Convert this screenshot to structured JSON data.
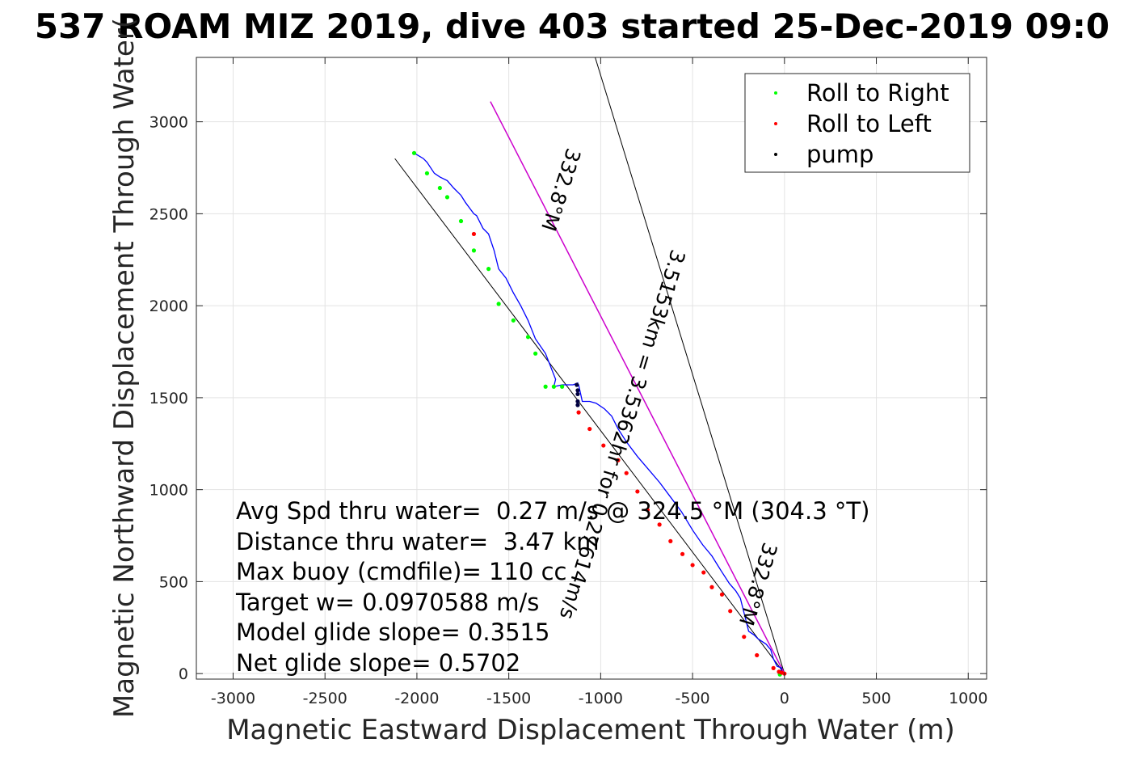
{
  "chart_data": {
    "type": "line",
    "title": "537 ROAM MIZ 2019, dive 403 started 25-Dec-2019 09:0",
    "xlabel": "Magnetic Eastward Displacement Through Water (m)",
    "ylabel": "Magnetic Northward Displacement Through Water(",
    "xlim": [
      -3200,
      1100
    ],
    "ylim": [
      -30,
      3350
    ],
    "xticks": [
      -3000,
      -2500,
      -2000,
      -1500,
      -1000,
      -500,
      0,
      500,
      1000
    ],
    "yticks": [
      0,
      500,
      1000,
      1500,
      2000,
      2500,
      3000
    ],
    "grid": true,
    "legend": {
      "placement": "top-right",
      "entries": [
        {
          "label": "Roll to Right",
          "color": "#00ff00"
        },
        {
          "label": "Roll to Left",
          "color": "#ff0000"
        },
        {
          "label": "pump",
          "color": "#000000"
        }
      ]
    },
    "track": {
      "color": "#0000ff",
      "x": [
        -25,
        -15,
        -40,
        -60,
        -75,
        -100,
        -145,
        -165,
        -195,
        -220,
        -240,
        -265,
        -300,
        -345,
        -395,
        -445,
        -500,
        -560,
        -620,
        -680,
        -740,
        -800,
        -860,
        -905,
        -940,
        -980,
        -1025,
        -1060,
        -1100,
        -1120,
        -1125,
        -1125,
        -1150,
        -1210,
        -1255,
        -1245,
        -1300,
        -1355,
        -1395,
        -1435,
        -1475,
        -1515,
        -1555,
        -1580,
        -1610,
        -1640,
        -1675,
        -1690,
        -1735,
        -1760,
        -1800,
        -1835,
        -1875,
        -1905,
        -1945,
        -1965,
        -2015
      ],
      "y": [
        -5,
        30,
        40,
        80,
        130,
        160,
        190,
        210,
        230,
        330,
        410,
        450,
        490,
        560,
        640,
        700,
        780,
        880,
        960,
        1040,
        1110,
        1180,
        1260,
        1330,
        1400,
        1440,
        1470,
        1480,
        1480,
        1570,
        1570,
        1580,
        1570,
        1570,
        1560,
        1600,
        1740,
        1820,
        1920,
        2000,
        2070,
        2150,
        2200,
        2300,
        2390,
        2420,
        2490,
        2500,
        2560,
        2600,
        2640,
        2680,
        2700,
        2720,
        2780,
        2800,
        2830
      ]
    },
    "roll_right": {
      "x": [
        -2015,
        -1945,
        -1875,
        -1835,
        -1760,
        -1690,
        -1610,
        -1555,
        -1475,
        -1395,
        -1355,
        -1300,
        -1255,
        -1210,
        -25
      ],
      "y": [
        2830,
        2720,
        2640,
        2590,
        2460,
        2300,
        2200,
        2010,
        1920,
        1830,
        1740,
        1560,
        1560,
        1560,
        -5
      ]
    },
    "roll_left": {
      "x": [
        -1690,
        -1120,
        -1060,
        -985,
        -905,
        -860,
        -800,
        -745,
        -680,
        -620,
        -555,
        -500,
        -440,
        -395,
        -340,
        -295,
        -220,
        -150,
        -60,
        -30,
        -15,
        0
      ],
      "y": [
        2390,
        1420,
        1330,
        1240,
        1160,
        1090,
        990,
        890,
        810,
        720,
        650,
        590,
        550,
        470,
        430,
        340,
        200,
        100,
        30,
        10,
        5,
        0
      ]
    },
    "pump": {
      "x": [
        -1130,
        -1125,
        -1125,
        -1125,
        -1125
      ],
      "y": [
        1570,
        1520,
        1480,
        1460,
        1540
      ]
    },
    "reference_lines": [
      {
        "color": "#000000",
        "x": [
          0,
          -1030
        ],
        "y": [
          0,
          3350
        ]
      },
      {
        "color": "#000000",
        "x": [
          0,
          -2120
        ],
        "y": [
          0,
          2800
        ]
      },
      {
        "color": "#cc00cc",
        "x": [
          0,
          -1600
        ],
        "y": [
          0,
          3110
        ]
      }
    ],
    "annotations": [
      "Avg Spd thru water=  0.27 m/s @ 324.5 °M (304.3 °T)",
      "Distance thru water=  3.47 km",
      "Max buoy (cmdfile)= 110 cc",
      "Target w= 0.0970588 m/s",
      "Model glide slope= 0.3515",
      "Net glide slope= 0.5702"
    ],
    "rotated_labels": [
      "332.8°M",
      "3.5153km = 3.5362hr for 0.27614m/s",
      "332.8°M"
    ]
  }
}
